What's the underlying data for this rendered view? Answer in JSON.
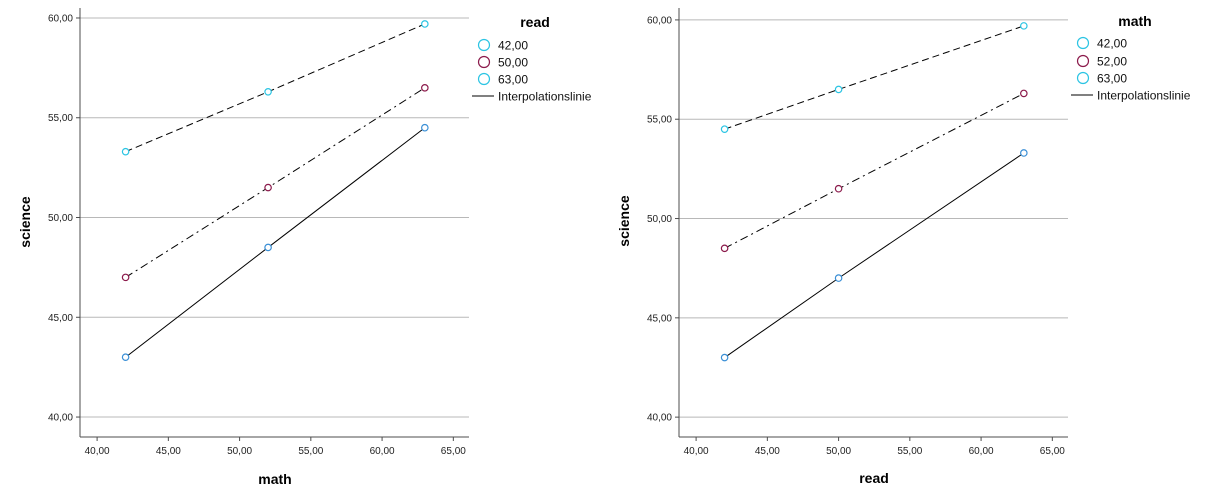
{
  "colors": {
    "cyan": "#2bc4e3",
    "maroon": "#8b1a4b",
    "blue_point": "#3a8fd6",
    "grid": "#b8b8b8",
    "axis": "#4d4d4d",
    "line": "#000000"
  },
  "chart_data": [
    {
      "type": "line",
      "xlabel": "math",
      "ylabel": "science",
      "xlim": [
        38.8,
        66.1
      ],
      "ylim": [
        39,
        60.5
      ],
      "x_ticks": [
        "40,00",
        "45,00",
        "50,00",
        "55,00",
        "60,00",
        "65,00"
      ],
      "y_ticks": [
        "40,00",
        "45,00",
        "50,00",
        "55,00",
        "60,00"
      ],
      "x_tick_values": [
        40,
        45,
        50,
        55,
        60,
        65
      ],
      "y_tick_values": [
        40,
        45,
        50,
        55,
        60
      ],
      "grid": true,
      "legend": {
        "title": "read",
        "position": "right",
        "entries": [
          "42,00",
          "50,00",
          "63,00"
        ],
        "line_label": "Interpolationslinie"
      },
      "series": [
        {
          "name": "42,00",
          "dash": "solid",
          "marker_color": "blue_point",
          "x": [
            42,
            52,
            63
          ],
          "y": [
            43.0,
            48.5,
            54.5
          ]
        },
        {
          "name": "50,00",
          "dash": "dashdot",
          "marker_color": "maroon",
          "x": [
            42,
            52,
            63
          ],
          "y": [
            47.0,
            51.5,
            56.5
          ]
        },
        {
          "name": "63,00",
          "dash": "dashed",
          "marker_color": "cyan",
          "x": [
            42,
            52,
            63
          ],
          "y": [
            53.3,
            56.3,
            59.7
          ]
        }
      ]
    },
    {
      "type": "line",
      "xlabel": "read",
      "ylabel": "science",
      "xlim": [
        38.8,
        66.1
      ],
      "ylim": [
        39,
        60.6
      ],
      "x_ticks": [
        "40,00",
        "45,00",
        "50,00",
        "55,00",
        "60,00",
        "65,00"
      ],
      "y_ticks": [
        "40,00",
        "45,00",
        "50,00",
        "55,00",
        "60,00"
      ],
      "x_tick_values": [
        40,
        45,
        50,
        55,
        60,
        65
      ],
      "y_tick_values": [
        40,
        45,
        50,
        55,
        60
      ],
      "grid": true,
      "legend": {
        "title": "math",
        "position": "right",
        "entries": [
          "42,00",
          "52,00",
          "63,00"
        ],
        "line_label": "Interpolationslinie"
      },
      "series": [
        {
          "name": "42,00",
          "dash": "solid",
          "marker_color": "blue_point",
          "x": [
            42,
            50,
            63
          ],
          "y": [
            43.0,
            47.0,
            53.3
          ]
        },
        {
          "name": "52,00",
          "dash": "dashdot",
          "marker_color": "maroon",
          "x": [
            42,
            50,
            63
          ],
          "y": [
            48.5,
            51.5,
            56.3
          ]
        },
        {
          "name": "63,00",
          "dash": "dashed",
          "marker_color": "cyan",
          "x": [
            42,
            50,
            63
          ],
          "y": [
            54.5,
            56.5,
            59.7
          ]
        }
      ]
    }
  ]
}
